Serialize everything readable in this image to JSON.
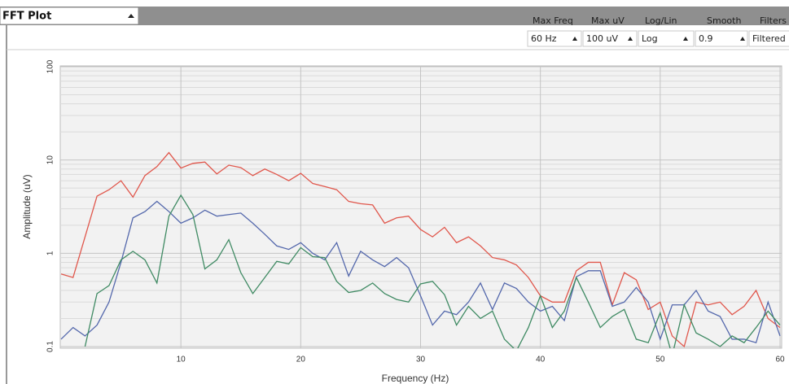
{
  "toolbar": {
    "title": "FFT Plot",
    "controls": [
      {
        "label": "Max Freq",
        "value": "60 Hz"
      },
      {
        "label": "Max uV",
        "value": "100 uV"
      },
      {
        "label": "Log/Lin",
        "value": "Log"
      },
      {
        "label": "Smooth",
        "value": "0.9"
      },
      {
        "label": "Filters",
        "value": "Filtered"
      }
    ]
  },
  "chart_data": {
    "type": "line",
    "x_label": "Frequency (Hz)",
    "y_label": "Amplitude (uV)",
    "x": [
      0,
      1,
      2,
      3,
      4,
      5,
      6,
      7,
      8,
      9,
      10,
      11,
      12,
      13,
      14,
      15,
      16,
      17,
      18,
      19,
      20,
      21,
      22,
      23,
      24,
      25,
      26,
      27,
      28,
      29,
      30,
      31,
      32,
      33,
      34,
      35,
      36,
      37,
      38,
      39,
      40,
      41,
      42,
      43,
      44,
      45,
      46,
      47,
      48,
      49,
      50,
      51,
      52,
      53,
      54,
      55,
      56,
      57,
      58,
      59,
      60
    ],
    "series": [
      {
        "color": "#e0574c",
        "values": [
          0.6,
          0.55,
          1.5,
          4.1,
          4.8,
          6,
          4,
          6.8,
          8.5,
          12,
          8.2,
          9.2,
          9.5,
          7.1,
          8.8,
          8.3,
          6.8,
          8,
          7,
          6,
          7.2,
          5.6,
          5.2,
          4.8,
          3.6,
          3.4,
          3.3,
          2.1,
          2.4,
          2.5,
          1.8,
          1.5,
          1.9,
          1.3,
          1.5,
          1.2,
          0.9,
          0.85,
          0.75,
          0.55,
          0.35,
          0.3,
          0.3,
          0.65,
          0.8,
          0.8,
          0.28,
          0.62,
          0.52,
          0.25,
          0.3,
          0.13,
          0.1,
          0.3,
          0.28,
          0.3,
          0.22,
          0.27,
          0.4,
          0.2,
          0.16
        ]
      },
      {
        "color": "#5468ac",
        "values": [
          0.12,
          0.16,
          0.13,
          0.17,
          0.3,
          0.8,
          2.4,
          2.8,
          3.6,
          2.8,
          2.1,
          2.4,
          2.9,
          2.5,
          2.6,
          2.7,
          2.1,
          1.6,
          1.2,
          1.1,
          1.3,
          1.0,
          0.85,
          1.3,
          0.57,
          1.05,
          0.85,
          0.72,
          0.9,
          0.7,
          0.35,
          0.17,
          0.24,
          0.22,
          0.3,
          0.48,
          0.25,
          0.48,
          0.42,
          0.3,
          0.24,
          0.27,
          0.19,
          0.56,
          0.65,
          0.65,
          0.27,
          0.3,
          0.43,
          0.3,
          0.12,
          0.28,
          0.28,
          0.4,
          0.24,
          0.21,
          0.12,
          0.12,
          0.11,
          0.3,
          0.13
        ]
      },
      {
        "color": "#3f8a63",
        "values": [
          null,
          null,
          0.1,
          0.37,
          0.45,
          0.85,
          1.05,
          0.85,
          0.48,
          2.5,
          4.2,
          2.6,
          0.68,
          0.85,
          1.4,
          0.62,
          0.37,
          0.55,
          0.82,
          0.77,
          1.15,
          0.92,
          0.9,
          0.5,
          0.38,
          0.4,
          0.48,
          0.37,
          0.32,
          0.3,
          0.47,
          0.5,
          0.36,
          0.17,
          0.27,
          0.2,
          0.24,
          0.12,
          0.09,
          0.16,
          0.35,
          0.16,
          0.24,
          0.55,
          0.3,
          0.16,
          0.21,
          0.25,
          0.12,
          0.11,
          0.23,
          0.08,
          0.28,
          0.14,
          0.12,
          0.1,
          0.13,
          0.11,
          0.16,
          0.24,
          0.17
        ]
      }
    ],
    "xlim": [
      0,
      60
    ],
    "xticks": [
      10,
      20,
      30,
      40,
      50,
      60
    ],
    "ylim": [
      0.1,
      100
    ],
    "yticks": [
      0.1,
      1,
      10,
      100
    ],
    "ylog": true,
    "grid": true
  }
}
